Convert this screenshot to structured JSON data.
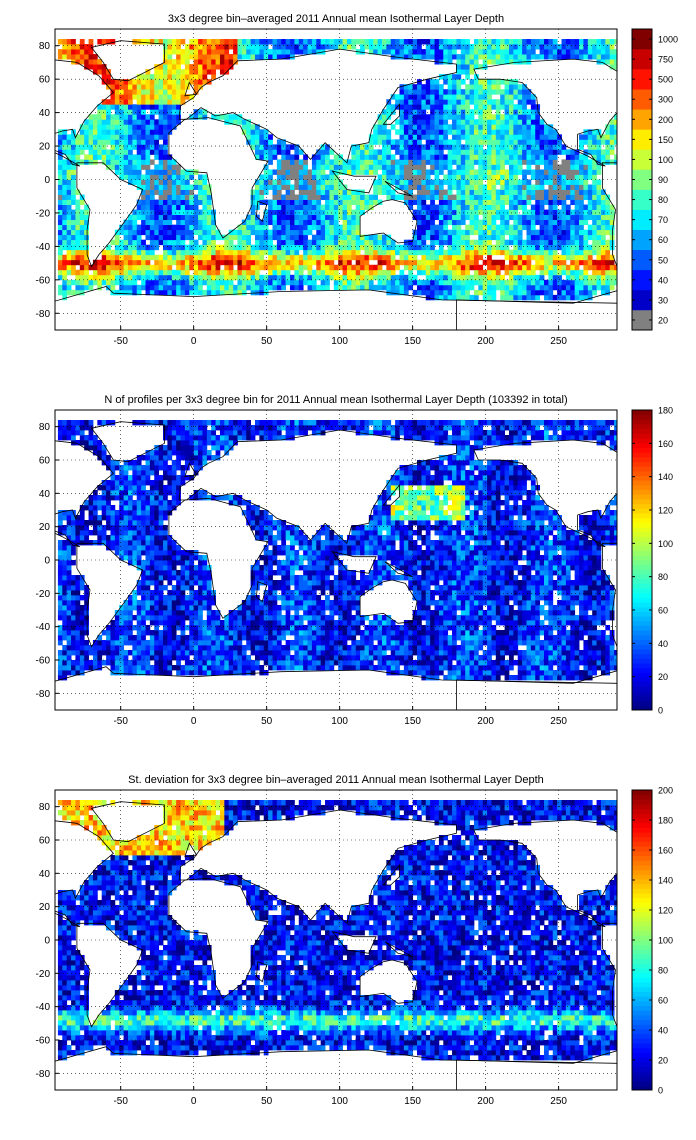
{
  "chart_data": [
    {
      "type": "heatmap",
      "title": "3x3 degree bin–averaged 2011 Annual mean Isothermal Layer Depth",
      "xlabel": "",
      "ylabel": "",
      "xlim": [
        -95,
        290
      ],
      "ylim": [
        -90,
        90
      ],
      "xticks": [
        -50,
        0,
        50,
        100,
        150,
        200,
        250
      ],
      "yticks": [
        -80,
        -60,
        -40,
        -20,
        0,
        20,
        40,
        60,
        80
      ],
      "grid": true,
      "colorbar": {
        "scale": "nonlinear",
        "ticks": [
          "20",
          "30",
          "40",
          "50",
          "60",
          "70",
          "80",
          "90",
          "100",
          "150",
          "200",
          "300",
          "500",
          "750",
          "1000"
        ],
        "lowest_color": "#808080"
      }
    },
    {
      "type": "heatmap",
      "title": "N of profiles per 3x3 degree bin for 2011 Annual mean Isothermal Layer Depth  (103392 in total)",
      "xlabel": "",
      "ylabel": "",
      "xlim": [
        -95,
        290
      ],
      "ylim": [
        -90,
        90
      ],
      "xticks": [
        -50,
        0,
        50,
        100,
        150,
        200,
        250
      ],
      "yticks": [
        -80,
        -60,
        -40,
        -20,
        0,
        20,
        40,
        60,
        80
      ],
      "grid": true,
      "colorbar": {
        "scale": "linear",
        "range": [
          0,
          180
        ],
        "ticks": [
          "0",
          "20",
          "40",
          "60",
          "80",
          "100",
          "120",
          "140",
          "160",
          "180"
        ]
      }
    },
    {
      "type": "heatmap",
      "title": "St. deviation for 3x3 degree bin–averaged 2011 Annual mean Isothermal Layer Depth",
      "xlabel": "",
      "ylabel": "",
      "xlim": [
        -95,
        290
      ],
      "ylim": [
        -90,
        90
      ],
      "xticks": [
        -50,
        0,
        50,
        100,
        150,
        200,
        250
      ],
      "yticks": [
        -80,
        -60,
        -40,
        -20,
        0,
        20,
        40,
        60,
        80
      ],
      "grid": true,
      "colorbar": {
        "scale": "linear",
        "range": [
          0,
          200
        ],
        "ticks": [
          "0",
          "20",
          "40",
          "60",
          "80",
          "100",
          "120",
          "140",
          "160",
          "180",
          "200"
        ]
      }
    }
  ]
}
